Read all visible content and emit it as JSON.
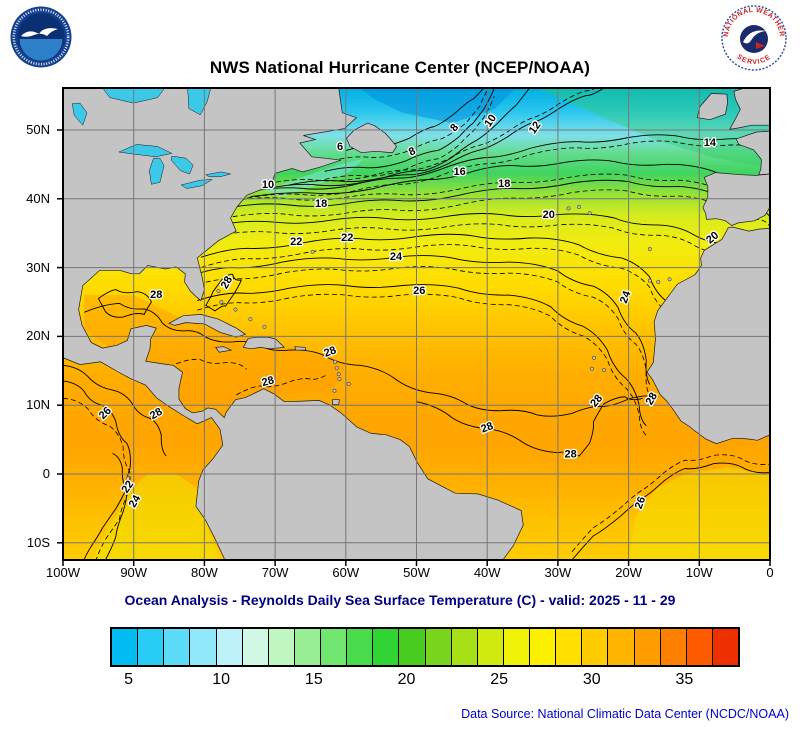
{
  "title": "NWS National Hurricane Center (NCEP/NOAA)",
  "subtitle": "Ocean Analysis - Reynolds Daily Sea Surface Temperature (C) - valid: 2025 - 11 - 29",
  "footer": {
    "data_source": "Data Source: National Climatic Data Center (NCDC/NOAA)"
  },
  "logos": {
    "noaa_alt": "NOAA",
    "nws_ring_top": "NATIONAL WEATHER",
    "nws_ring_bottom": "SERVICE"
  },
  "map": {
    "units": "C",
    "y_ticks": [
      {
        "label": "50N",
        "lat": 50
      },
      {
        "label": "40N",
        "lat": 40
      },
      {
        "label": "30N",
        "lat": 30
      },
      {
        "label": "20N",
        "lat": 20
      },
      {
        "label": "10N",
        "lat": 10
      },
      {
        "label": "0",
        "lat": 0
      },
      {
        "label": "10S",
        "lat": -10
      }
    ],
    "x_ticks": [
      {
        "label": "100W",
        "lon": 100
      },
      {
        "label": "90W",
        "lon": 90
      },
      {
        "label": "80W",
        "lon": 80
      },
      {
        "label": "70W",
        "lon": 70
      },
      {
        "label": "60W",
        "lon": 60
      },
      {
        "label": "50W",
        "lon": 50
      },
      {
        "label": "40W",
        "lon": 40
      },
      {
        "label": "30W",
        "lon": 30
      },
      {
        "label": "20W",
        "lon": 20
      },
      {
        "label": "10W",
        "lon": 10
      },
      {
        "label": "0",
        "lon": 0
      }
    ],
    "contour_labels": [
      {
        "t": "6",
        "lon": 60.8,
        "lat": 47.5,
        "r": 0
      },
      {
        "t": "8",
        "lon": 50.6,
        "lat": 46.8,
        "r": -25
      },
      {
        "t": "8",
        "lon": 44.6,
        "lat": 50.3,
        "r": -50
      },
      {
        "t": "10",
        "lon": 39.5,
        "lat": 51.3,
        "r": -55
      },
      {
        "t": "10",
        "lon": 71.0,
        "lat": 42.0,
        "r": 0
      },
      {
        "t": "12",
        "lon": 33.2,
        "lat": 50.3,
        "r": -55
      },
      {
        "t": "14",
        "lon": 8.5,
        "lat": 48.1,
        "r": 0
      },
      {
        "t": "16",
        "lon": 43.9,
        "lat": 43.9,
        "r": 0
      },
      {
        "t": "18",
        "lon": 37.6,
        "lat": 42.1,
        "r": 0
      },
      {
        "t": "18",
        "lon": 63.5,
        "lat": 39.2,
        "r": 0
      },
      {
        "t": "20",
        "lon": 31.3,
        "lat": 37.6,
        "r": 0
      },
      {
        "t": "20",
        "lon": 8.1,
        "lat": 34.3,
        "r": -40
      },
      {
        "t": "22",
        "lon": 67.0,
        "lat": 33.7,
        "r": 0
      },
      {
        "t": "22",
        "lon": 59.8,
        "lat": 34.3,
        "r": 0
      },
      {
        "t": "24",
        "lon": 52.9,
        "lat": 31.5,
        "r": 0
      },
      {
        "t": "24",
        "lon": 20.4,
        "lat": 25.7,
        "r": -70
      },
      {
        "t": "26",
        "lon": 49.6,
        "lat": 26.6,
        "r": 0
      },
      {
        "t": "28",
        "lon": 86.8,
        "lat": 26.0,
        "r": 0
      },
      {
        "t": "28",
        "lon": 76.8,
        "lat": 27.8,
        "r": -60
      },
      {
        "t": "28",
        "lon": 62.2,
        "lat": 17.7,
        "r": -20
      },
      {
        "t": "28",
        "lon": 71.0,
        "lat": 13.4,
        "r": -15
      },
      {
        "t": "28",
        "lon": 86.8,
        "lat": 8.7,
        "r": -30
      },
      {
        "t": "28",
        "lon": 40.0,
        "lat": 6.7,
        "r": -20
      },
      {
        "t": "28",
        "lon": 28.2,
        "lat": 2.8,
        "r": 0
      },
      {
        "t": "28",
        "lon": 24.5,
        "lat": 10.6,
        "r": -50
      },
      {
        "t": "28",
        "lon": 16.7,
        "lat": 10.9,
        "r": -60
      },
      {
        "t": "26",
        "lon": 18.3,
        "lat": -4.2,
        "r": -70
      },
      {
        "t": "26",
        "lon": 94.0,
        "lat": 8.8,
        "r": -45
      },
      {
        "t": "22",
        "lon": 90.8,
        "lat": -1.9,
        "r": -55
      },
      {
        "t": "24",
        "lon": 89.8,
        "lat": -4.0,
        "r": -60
      }
    ]
  },
  "colorbar": {
    "min": 4,
    "max": 38,
    "ticks": [
      "5",
      "10",
      "15",
      "20",
      "25",
      "30",
      "35"
    ],
    "colors": [
      "#00BCF0",
      "#28CCF4",
      "#5CDCF8",
      "#90E8FA",
      "#BCF2F8",
      "#D0F8E4",
      "#C0F6C0",
      "#98EE94",
      "#70E670",
      "#48DC4C",
      "#30D434",
      "#48CC20",
      "#78D41C",
      "#A8E018",
      "#D0EA10",
      "#F0F208",
      "#FAF000",
      "#FFE000",
      "#FFCC00",
      "#FFB400",
      "#FF9C00",
      "#FF8000",
      "#FF5C00",
      "#EE3000"
    ]
  }
}
